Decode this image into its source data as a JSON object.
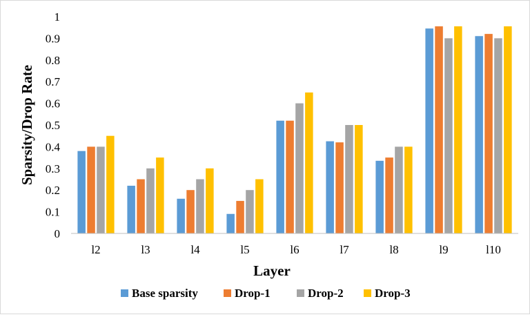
{
  "chart_data": {
    "type": "bar",
    "title": "",
    "xlabel": "Layer",
    "ylabel": "Sparsity/Drop Rate",
    "categories": [
      "l2",
      "l3",
      "l4",
      "l5",
      "l6",
      "l7",
      "l8",
      "l9",
      "l10"
    ],
    "ylim": [
      0,
      1
    ],
    "yticks": [
      "0",
      "0.1",
      "0.2",
      "0.3",
      "0.4",
      "0.5",
      "0.6",
      "0.7",
      "0.8",
      "0.9",
      "1"
    ],
    "grid": false,
    "legend_position": "bottom",
    "series": [
      {
        "name": "Base sparsity",
        "color": "#5B9BD5",
        "values": [
          0.38,
          0.22,
          0.16,
          0.09,
          0.52,
          0.425,
          0.335,
          0.945,
          0.91
        ]
      },
      {
        "name": "Drop-1",
        "color": "#ED7D31",
        "values": [
          0.4,
          0.25,
          0.2,
          0.15,
          0.52,
          0.42,
          0.35,
          0.955,
          0.92
        ]
      },
      {
        "name": "Drop-2",
        "color": "#A5A5A5",
        "values": [
          0.4,
          0.3,
          0.25,
          0.2,
          0.6,
          0.5,
          0.4,
          0.9,
          0.9
        ]
      },
      {
        "name": "Drop-3",
        "color": "#FFC000",
        "values": [
          0.45,
          0.35,
          0.3,
          0.25,
          0.65,
          0.5,
          0.4,
          0.955,
          0.955
        ]
      }
    ]
  }
}
